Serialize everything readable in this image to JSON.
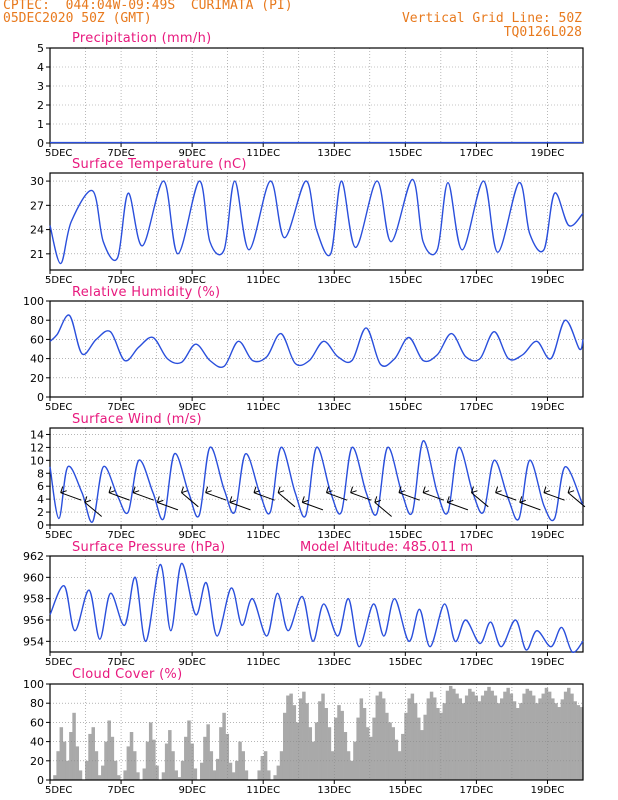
{
  "header": {
    "line1": "CPTEC:  044:04W-09:49S  CURIMATA (PI)",
    "line2": "05DEC2020 50Z (GMT)",
    "right1": "Vertical Grid Line: 50Z",
    "right2": "TQ0126L028",
    "color": "#e87a1e"
  },
  "colors": {
    "series": "#2a4fdc",
    "title": "#e8197e",
    "bars": "#a9a9a9"
  },
  "chart_data": [
    {
      "type": "line",
      "title": "Precipitation (mm/h)",
      "x_tick_labels": [
        "5DEC",
        "7DEC",
        "9DEC",
        "11DEC",
        "13DEC",
        "15DEC",
        "17DEC",
        "19DEC"
      ],
      "ylim": [
        0,
        5
      ],
      "y_ticks": [
        0,
        1,
        2,
        3,
        4,
        5
      ],
      "grid": true,
      "series": [
        {
          "x_days": [
            0,
            15
          ],
          "values": [
            0.02,
            0.02
          ]
        }
      ]
    },
    {
      "type": "line",
      "title": "Surface Temperature (nC)",
      "x_tick_labels": [
        "5DEC",
        "7DEC",
        "9DEC",
        "11DEC",
        "13DEC",
        "15DEC",
        "17DEC",
        "19DEC"
      ],
      "ylim": [
        19,
        31
      ],
      "y_ticks": [
        21,
        24,
        27,
        30
      ],
      "grid": true,
      "series": [
        {
          "x_days": [
            0,
            0.3,
            0.6,
            1.2,
            1.5,
            1.9,
            2.2,
            2.6,
            3.2,
            3.6,
            4.2,
            4.5,
            4.9,
            5.2,
            5.6,
            6.2,
            6.6,
            7.2,
            7.5,
            7.9,
            8.2,
            8.6,
            9.2,
            9.6,
            10.2,
            10.5,
            10.9,
            11.2,
            11.6,
            12.2,
            12.6,
            13.2,
            13.5,
            13.9,
            14.2,
            14.6,
            15.0
          ],
          "values": [
            24.5,
            19.8,
            25,
            28.8,
            22.5,
            20.5,
            28.5,
            22,
            30,
            21,
            30,
            22.5,
            21.5,
            30,
            21.5,
            30,
            23,
            30,
            24,
            21,
            30,
            21.8,
            30,
            22.5,
            30.2,
            22.5,
            21.5,
            29.8,
            21.5,
            30,
            21.2,
            29.8,
            23.5,
            21.5,
            28.5,
            24.5,
            26
          ]
        }
      ]
    },
    {
      "type": "line",
      "title": "Relative Humidity (%)",
      "x_tick_labels": [
        "5DEC",
        "7DEC",
        "9DEC",
        "11DEC",
        "13DEC",
        "15DEC",
        "17DEC",
        "19DEC"
      ],
      "ylim": [
        0,
        100
      ],
      "y_ticks": [
        0,
        20,
        40,
        60,
        80,
        100
      ],
      "grid": true,
      "series": [
        {
          "x_days": [
            0,
            0.2,
            0.55,
            0.9,
            1.3,
            1.7,
            2.1,
            2.5,
            2.9,
            3.3,
            3.7,
            4.1,
            4.5,
            4.9,
            5.3,
            5.7,
            6.1,
            6.5,
            6.9,
            7.3,
            7.7,
            8.1,
            8.5,
            8.9,
            9.3,
            9.7,
            10.1,
            10.5,
            10.9,
            11.3,
            11.7,
            12.1,
            12.5,
            12.9,
            13.3,
            13.7,
            14.1,
            14.5,
            14.9,
            15.0
          ],
          "values": [
            58,
            65,
            85,
            45,
            60,
            68,
            38,
            52,
            62,
            40,
            36,
            55,
            38,
            32,
            58,
            38,
            42,
            66,
            35,
            38,
            58,
            42,
            38,
            72,
            34,
            40,
            62,
            38,
            44,
            66,
            42,
            40,
            68,
            40,
            44,
            58,
            40,
            80,
            50,
            60
          ]
        }
      ]
    },
    {
      "type": "line",
      "title": "Surface Wind (m/s)",
      "x_tick_labels": [
        "5DEC",
        "7DEC",
        "9DEC",
        "11DEC",
        "13DEC",
        "15DEC",
        "17DEC",
        "19DEC"
      ],
      "ylim": [
        0,
        15
      ],
      "y_ticks": [
        0,
        2,
        4,
        6,
        8,
        10,
        12,
        14
      ],
      "grid": true,
      "series": [
        {
          "x_days": [
            0,
            0.25,
            0.5,
            0.9,
            1.2,
            1.5,
            1.9,
            2.2,
            2.5,
            2.9,
            3.2,
            3.5,
            3.9,
            4.2,
            4.5,
            4.9,
            5.2,
            5.5,
            5.9,
            6.2,
            6.5,
            6.9,
            7.2,
            7.5,
            7.9,
            8.2,
            8.5,
            8.9,
            9.2,
            9.5,
            9.9,
            10.2,
            10.5,
            10.9,
            11.2,
            11.5,
            11.9,
            12.2,
            12.5,
            12.9,
            13.2,
            13.5,
            13.9,
            14.2,
            14.5,
            15.0
          ],
          "values": [
            9,
            1,
            9,
            5,
            0.5,
            9,
            4.5,
            2,
            10,
            5,
            1,
            11,
            5,
            1.5,
            12,
            5.5,
            2,
            11,
            5,
            2,
            12,
            5,
            1.5,
            12,
            5,
            2,
            12,
            5,
            1.8,
            12,
            5,
            2,
            13,
            5,
            2,
            12,
            5,
            2,
            10,
            4,
            1,
            10,
            3,
            1,
            9,
            3
          ]
        }
      ]
    },
    {
      "type": "line",
      "title": "Surface Pressure (hPa)",
      "annotation": "Model Altitude: 485.011 m",
      "x_tick_labels": [
        "5DEC",
        "7DEC",
        "9DEC",
        "11DEC",
        "13DEC",
        "15DEC",
        "17DEC",
        "19DEC"
      ],
      "ylim": [
        953,
        962
      ],
      "y_ticks": [
        954,
        956,
        958,
        960,
        962
      ],
      "grid": true,
      "series": [
        {
          "x_days": [
            0,
            0.4,
            0.7,
            1.1,
            1.4,
            1.7,
            2.1,
            2.4,
            2.7,
            3.1,
            3.4,
            3.7,
            4.1,
            4.4,
            4.7,
            5.1,
            5.4,
            5.7,
            6.1,
            6.4,
            6.7,
            7.1,
            7.4,
            7.7,
            8.1,
            8.4,
            8.7,
            9.1,
            9.4,
            9.7,
            10.1,
            10.4,
            10.7,
            11.1,
            11.4,
            11.7,
            12.1,
            12.4,
            12.7,
            13.1,
            13.4,
            13.7,
            14.1,
            14.4,
            14.7,
            15.0
          ],
          "values": [
            956.5,
            959.2,
            955,
            958.8,
            954.2,
            958.5,
            955.5,
            960,
            954,
            961.2,
            955,
            961.3,
            956.5,
            959.5,
            954.5,
            959,
            955.5,
            958,
            954.5,
            958.5,
            955,
            958.2,
            954,
            957.5,
            954.5,
            958,
            953.5,
            957.5,
            954.5,
            958,
            954,
            957,
            953.5,
            957.5,
            954,
            956,
            953.8,
            955.8,
            953.5,
            956,
            953.2,
            955,
            953.5,
            955.3,
            953,
            954
          ]
        }
      ]
    },
    {
      "type": "bar",
      "title": "Cloud Cover (%)",
      "x_tick_labels": [
        "5DEC",
        "7DEC",
        "9DEC",
        "11DEC",
        "13DEC",
        "15DEC",
        "17DEC",
        "19DEC"
      ],
      "ylim": [
        0,
        100
      ],
      "y_ticks": [
        0,
        20,
        40,
        60,
        80,
        100
      ],
      "grid": true,
      "values": [
        0,
        5,
        30,
        55,
        40,
        20,
        50,
        70,
        35,
        10,
        0,
        20,
        48,
        55,
        30,
        5,
        15,
        40,
        62,
        45,
        20,
        5,
        0,
        10,
        35,
        50,
        30,
        8,
        0,
        12,
        40,
        60,
        42,
        15,
        0,
        8,
        38,
        52,
        30,
        10,
        3,
        20,
        45,
        62,
        38,
        12,
        0,
        18,
        45,
        58,
        30,
        10,
        22,
        55,
        70,
        48,
        18,
        8,
        20,
        40,
        30,
        10,
        0,
        0,
        0,
        10,
        25,
        30,
        10,
        0,
        5,
        15,
        30,
        70,
        88,
        90,
        78,
        60,
        85,
        92,
        80,
        55,
        40,
        60,
        82,
        90,
        75,
        55,
        30,
        65,
        78,
        72,
        50,
        30,
        20,
        40,
        65,
        85,
        75,
        55,
        45,
        65,
        88,
        92,
        85,
        70,
        60,
        55,
        42,
        30,
        48,
        70,
        85,
        90,
        80,
        65,
        52,
        68,
        85,
        92,
        86,
        75,
        70,
        80,
        93,
        98,
        95,
        90,
        85,
        80,
        88,
        95,
        92,
        88,
        82,
        88,
        93,
        97,
        93,
        88,
        80,
        85,
        92,
        96,
        90,
        82,
        75,
        80,
        90,
        95,
        93,
        88,
        80,
        85,
        90,
        96,
        92,
        85,
        80,
        76,
        84,
        92,
        96,
        90,
        82,
        78,
        76
      ]
    }
  ]
}
